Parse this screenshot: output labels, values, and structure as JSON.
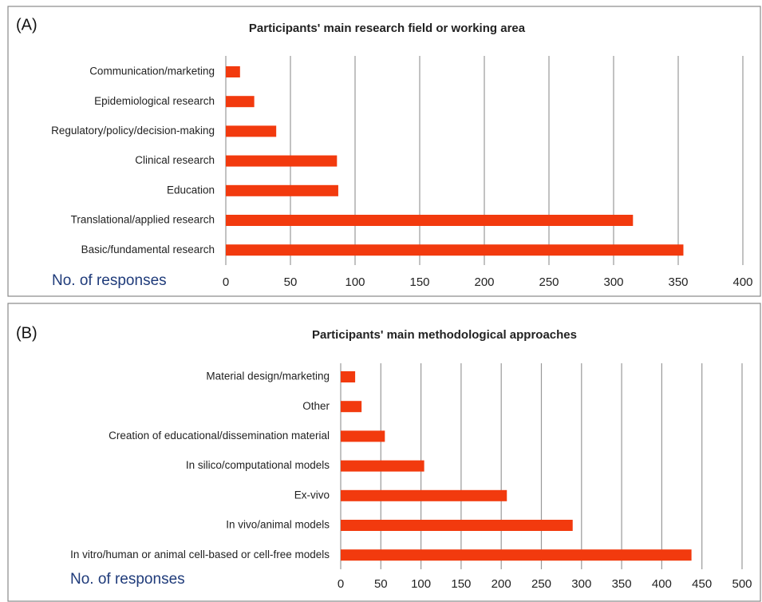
{
  "chart_data": [
    {
      "type": "bar",
      "orientation": "horizontal",
      "panel": "(A)",
      "title": "Participants' main research field or working area",
      "x_label": "No. of responses",
      "categories": [
        "Communication/marketing",
        "Epidemiological research",
        "Regulatory/policy/decision-making",
        "Clinical research",
        "Education",
        "Translational/applied research",
        "Basic/fundamental research"
      ],
      "values": [
        11,
        22,
        39,
        86,
        87,
        315,
        354
      ],
      "color": "#f23a0e",
      "xlim": [
        0,
        400
      ],
      "xticks": [
        0,
        50,
        100,
        150,
        200,
        250,
        300,
        350,
        400
      ],
      "grid": true
    },
    {
      "type": "bar",
      "orientation": "horizontal",
      "panel": "(B)",
      "title": "Participants' main methodological approaches",
      "x_label": "No. of responses",
      "categories": [
        "Material design/marketing",
        "Other",
        "Creation of educational/dissemination material",
        "In silico/computational models",
        "Ex-vivo",
        "In vivo/animal models",
        "In vitro/human or animal cell-based or cell-free models"
      ],
      "values": [
        18,
        26,
        55,
        104,
        207,
        289,
        437
      ],
      "color": "#f23a0e",
      "xlim": [
        0,
        500
      ],
      "xticks": [
        0,
        50,
        100,
        150,
        200,
        250,
        300,
        350,
        400,
        450,
        500
      ],
      "grid": true
    }
  ]
}
